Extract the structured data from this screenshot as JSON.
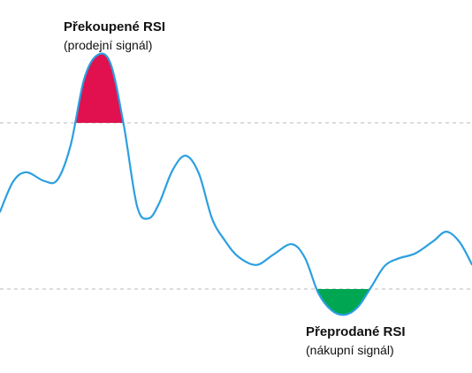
{
  "chart_data": {
    "type": "line",
    "title": "",
    "xlabel": "",
    "ylabel": "",
    "ylim": [
      0,
      100
    ],
    "grid": false,
    "legend": "none",
    "levels": {
      "overbought": 70,
      "oversold": 30
    },
    "series": [
      {
        "x": [
          0,
          15,
          30,
          50,
          65,
          80,
          95,
          110,
          125,
          140,
          155,
          168,
          180,
          195,
          210,
          225,
          240,
          255,
          270,
          290,
          310,
          330,
          345,
          360,
          375,
          390,
          405,
          420,
          435,
          450,
          470,
          490,
          505,
          520,
          534
        ],
        "values": [
          48.6,
          55.9,
          58.1,
          56.0,
          56.3,
          64.7,
          80.4,
          86.3,
          84.3,
          69.5,
          50.0,
          47.0,
          50.6,
          58.5,
          62.1,
          57.8,
          46.9,
          41.5,
          37.7,
          35.8,
          38.4,
          40.8,
          37.5,
          29.1,
          24.9,
          23.8,
          25.7,
          30.5,
          35.5,
          37.3,
          38.6,
          41.5,
          43.8,
          41.3,
          35.9
        ]
      }
    ],
    "annotations": [
      {
        "title": "Překoupené RSI",
        "subtitle": "(prodejní signál)",
        "zone": "overbought",
        "fill": "#e0114e"
      },
      {
        "title": "Přeprodané RSI",
        "subtitle": "(nákupní signál)",
        "zone": "oversold",
        "fill": "#00a651"
      }
    ],
    "colors": {
      "line": "#2b9fe0",
      "level_line": "#c8c8c8",
      "overbought_fill": "#e0114e",
      "oversold_fill": "#00a651"
    }
  }
}
